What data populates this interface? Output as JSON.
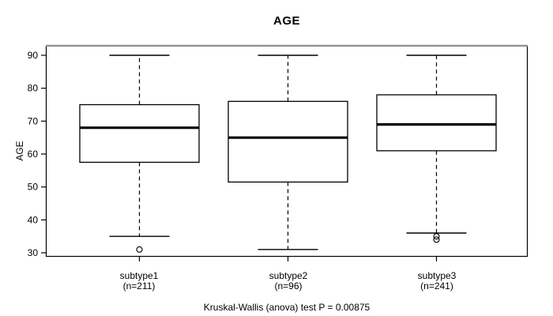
{
  "title": "AGE",
  "chart_data": {
    "type": "boxplot",
    "title": "AGE",
    "ylabel": "AGE",
    "xlabel": "",
    "ylim": [
      30,
      90
    ],
    "yticks": [
      30,
      40,
      50,
      60,
      70,
      80,
      90
    ],
    "grid": false,
    "categories": [
      "subtype1",
      "subtype2",
      "subtype3"
    ],
    "category_sublabels": [
      "(n=211)",
      "(n=96)",
      "(n=241)"
    ],
    "sample_sizes": [
      211,
      96,
      241
    ],
    "annotation": "Kruskal-Wallis (anova) test P = 0.00875",
    "series": [
      {
        "name": "subtype1",
        "whisker_low": 35,
        "q1": 57.5,
        "median": 68,
        "q3": 75,
        "whisker_high": 90,
        "outliers": [
          31
        ]
      },
      {
        "name": "subtype2",
        "whisker_low": 31,
        "q1": 51.5,
        "median": 65,
        "q3": 76,
        "whisker_high": 90,
        "outliers": []
      },
      {
        "name": "subtype3",
        "whisker_low": 36,
        "q1": 61,
        "median": 69,
        "q3": 78,
        "whisker_high": 90,
        "outliers": [
          34,
          35
        ]
      }
    ],
    "colors": {
      "line": "#000000",
      "box_fill": "#ffffff",
      "frame_top": "#8f8f8f",
      "background": "#ffffff"
    }
  }
}
